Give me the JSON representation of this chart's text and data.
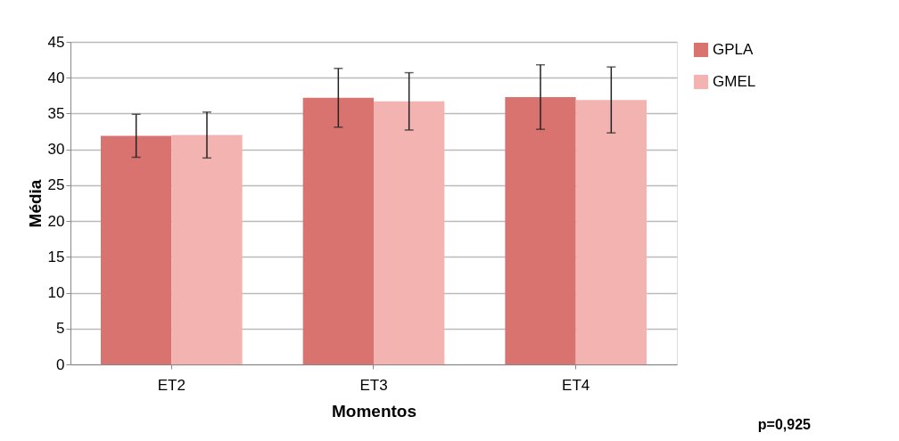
{
  "chart_data": {
    "type": "bar",
    "xlabel": "Momentos",
    "ylabel": "Média",
    "categories": [
      "ET2",
      "ET3",
      "ET4"
    ],
    "series": [
      {
        "name": "GPLA",
        "color": "#d9736f",
        "values": [
          31.9,
          37.2,
          37.3
        ],
        "errors": [
          3.0,
          4.1,
          4.5
        ]
      },
      {
        "name": "GMEL",
        "color": "#f3b3b0",
        "values": [
          32.0,
          36.7,
          36.9
        ],
        "errors": [
          3.2,
          4.0,
          4.6
        ]
      }
    ],
    "ylim": [
      0,
      45
    ],
    "yticks": [
      0,
      5,
      10,
      15,
      20,
      25,
      30,
      35,
      40,
      45
    ],
    "grid": "y",
    "legend": "right",
    "annotations": [
      "p=0,925"
    ]
  }
}
